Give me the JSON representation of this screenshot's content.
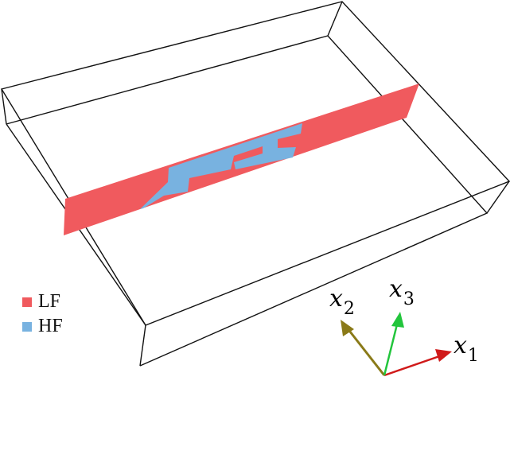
{
  "colors": {
    "lf": "#f05a5e",
    "hf": "#78b2e0",
    "box_edge": "#111111",
    "axis1": "#d01a1a",
    "axis2": "#8a7a18",
    "axis3": "#22c53c"
  },
  "legend": [
    {
      "label": "LF",
      "color": "#f05a5e"
    },
    {
      "label": "HF",
      "color": "#78b2e0"
    }
  ],
  "axes": [
    {
      "name": "x",
      "subscript": "1"
    },
    {
      "name": "x",
      "subscript": "2"
    },
    {
      "name": "x",
      "subscript": "3"
    }
  ]
}
